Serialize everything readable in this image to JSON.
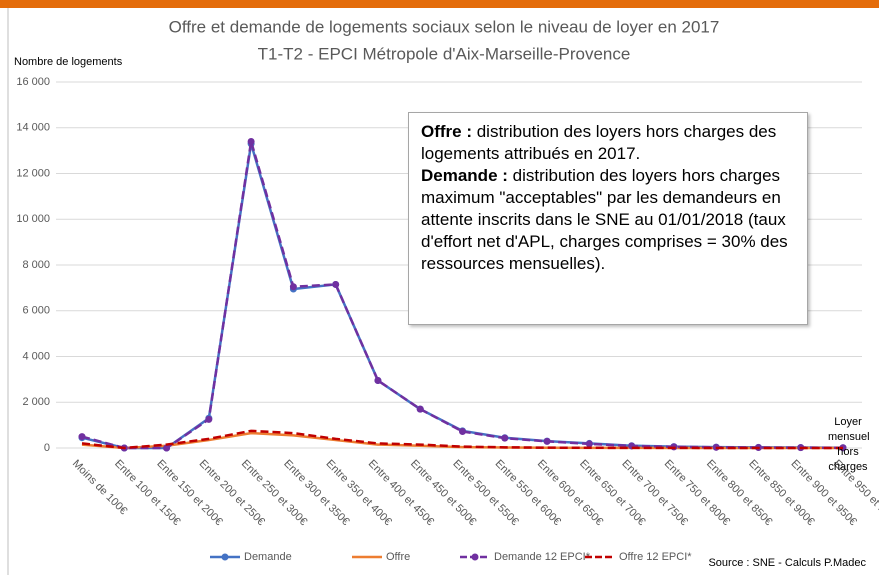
{
  "chart_data": {
    "type": "line",
    "title": "Offre et demande de logements sociaux selon le niveau de loyer en 2017",
    "subtitle": "T1-T2  -  EPCI Métropole d'Aix-Marseille-Provence",
    "ylabel": "Nombre de logements",
    "xlabel": "Loyer mensuel hors charges",
    "source": "Source : SNE - Calculs P.Madec",
    "annotation": [
      {
        "bold": "Offre :",
        "text": " distribution des loyers hors charges des logements attribués en 2017."
      },
      {
        "bold": "Demande :",
        "text": " distribution des loyers hors charges maximum \"acceptables\" par les demandeurs en attente inscrits dans le SNE au 01/01/2018 (taux d'effort net d'APL, charges comprises = 30% des ressources mensuelles)."
      }
    ],
    "categories": [
      "Moins de 100€",
      "Entre 100 et 150€",
      "Entre 150 et 200€",
      "Entre 200 et 250€",
      "Entre 250 et 300€",
      "Entre 300 et 350€",
      "Entre 350 et 400€",
      "Entre 400 et 450€",
      "Entre 450 et 500€",
      "Entre 500 et 550€",
      "Entre 550 et 600€",
      "Entre 600 et 650€",
      "Entre 650 et 700€",
      "Entre 700 et 750€",
      "Entre 750 et 800€",
      "Entre 800 et 850€",
      "Entre 850 et 900€",
      "Entre 900 et 950€",
      "Entre 950 et 1000€"
    ],
    "series": [
      {
        "name": "Demande",
        "color": "#4472c4",
        "dashed": false,
        "marker": true,
        "values": [
          450,
          0,
          0,
          1300,
          13300,
          6950,
          7150,
          2950,
          1700,
          750,
          450,
          300,
          200,
          100,
          60,
          40,
          30,
          20,
          10
        ]
      },
      {
        "name": "Offre",
        "color": "#ed7d31",
        "dashed": false,
        "marker": false,
        "values": [
          150,
          0,
          100,
          350,
          650,
          550,
          350,
          150,
          100,
          40,
          20,
          10,
          5,
          5,
          0,
          0,
          0,
          0,
          0
        ]
      },
      {
        "name": "Demande 12 EPCI*",
        "color": "#7030a0",
        "dashed": true,
        "marker": true,
        "values": [
          500,
          0,
          0,
          1250,
          13400,
          7050,
          7150,
          2950,
          1700,
          720,
          430,
          290,
          180,
          90,
          50,
          30,
          20,
          15,
          10
        ]
      },
      {
        "name": "Offre 12 EPCI*",
        "color": "#c00000",
        "dashed": true,
        "marker": false,
        "values": [
          200,
          0,
          150,
          400,
          750,
          650,
          400,
          200,
          150,
          60,
          30,
          15,
          10,
          5,
          5,
          0,
          0,
          0,
          0
        ]
      }
    ],
    "ylim": [
      0,
      16000
    ],
    "yticks": [
      0,
      {
        "value": 2000,
        "label": "2 000"
      },
      {
        "value": 4000,
        "label": "4 000"
      },
      {
        "value": 6000,
        "label": "6 000"
      },
      {
        "value": 8000,
        "label": "8 000"
      },
      {
        "value": 10000,
        "label": "10 000"
      },
      {
        "value": 12000,
        "label": "12 000"
      },
      {
        "value": 14000,
        "label": "14 000"
      },
      {
        "value": 16000,
        "label": "16 000"
      }
    ],
    "grid": true,
    "legend": "bottom"
  }
}
